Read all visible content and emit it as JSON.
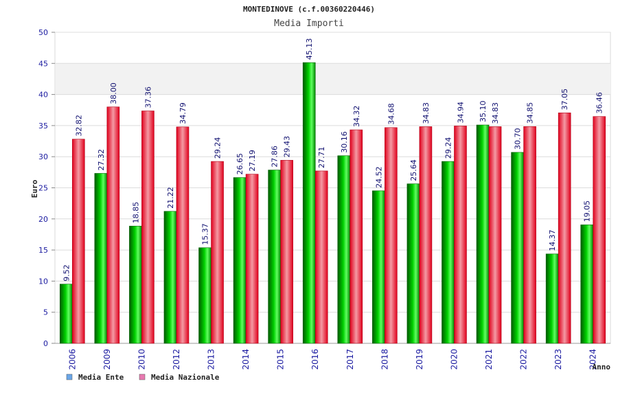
{
  "chart_data": {
    "type": "bar",
    "title": "MONTEDINOVE (c.f.00360220446)",
    "subtitle": "Media Importi",
    "ylabel": "Euro",
    "xlabel": "Anno",
    "ylim": [
      0,
      50
    ],
    "yticks": [
      0,
      5,
      10,
      15,
      20,
      25,
      30,
      35,
      40,
      45,
      50
    ],
    "grid": true,
    "legend_position": "bottom-left",
    "categories": [
      "2006",
      "2009",
      "2010",
      "2012",
      "2013",
      "2014",
      "2015",
      "2016",
      "2017",
      "2018",
      "2019",
      "2020",
      "2021",
      "2022",
      "2023",
      "2024"
    ],
    "series": [
      {
        "name": "Media Ente",
        "color": "#00c000",
        "legend_color": "#6aa6e8",
        "values": [
          9.52,
          27.32,
          18.85,
          21.22,
          15.37,
          26.65,
          27.86,
          45.13,
          30.16,
          24.52,
          25.64,
          29.24,
          35.1,
          30.7,
          14.37,
          19.05
        ],
        "labels": [
          "9.52",
          "27.32",
          "18.85",
          "21.22",
          "15.37",
          "26.65",
          "27.86",
          "45.13",
          "30.16",
          "24.52",
          "25.64",
          "29.24",
          "35.10",
          "30.70",
          "14.37",
          "19.05"
        ]
      },
      {
        "name": "Media Nazionale",
        "color": "#e8102a",
        "legend_color": "#e87ab0",
        "values": [
          32.82,
          38.0,
          37.36,
          34.79,
          29.24,
          27.19,
          29.43,
          27.71,
          34.32,
          34.68,
          34.83,
          34.94,
          34.83,
          34.85,
          37.05,
          36.46
        ],
        "labels": [
          "32.82",
          "38.00",
          "37.36",
          "34.79",
          "29.24",
          "27.19",
          "29.43",
          "27.71",
          "34.32",
          "34.68",
          "34.83",
          "34.94",
          "34.83",
          "34.85",
          "37.05",
          "36.46"
        ]
      }
    ]
  }
}
